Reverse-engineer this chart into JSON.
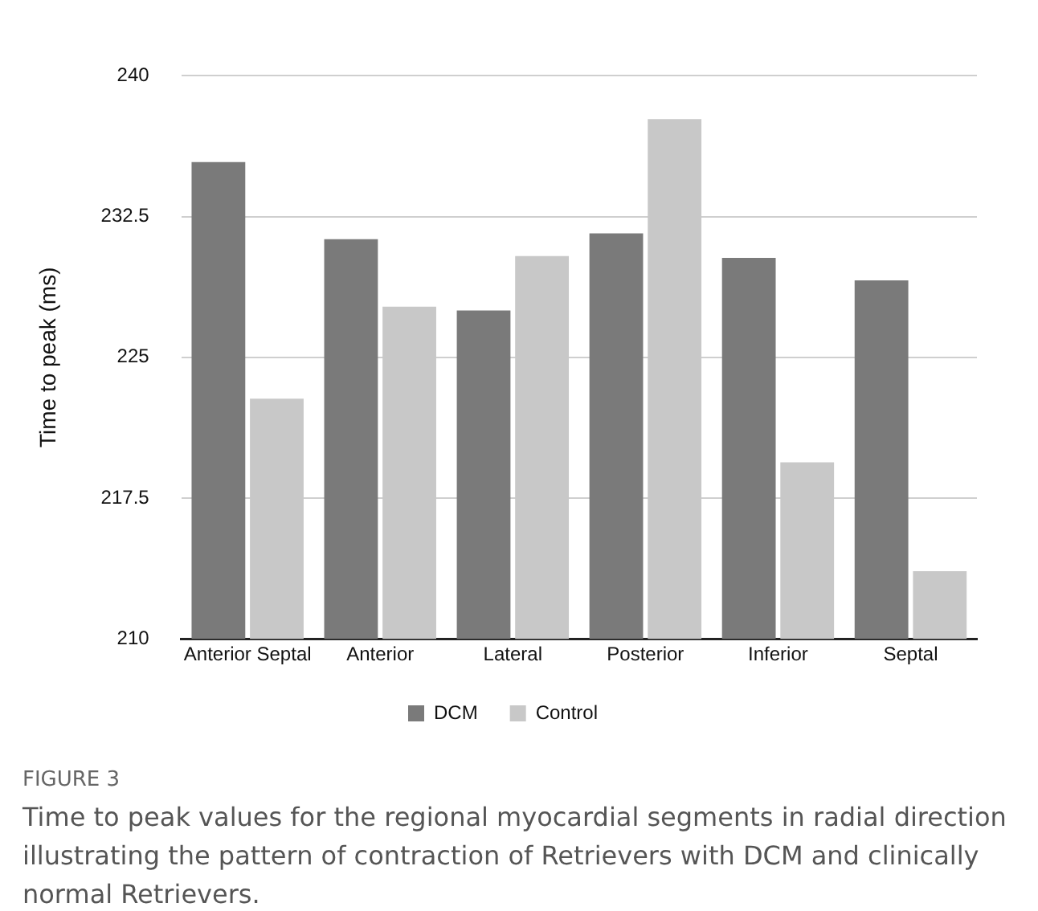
{
  "chart_data": {
    "type": "bar",
    "ylabel": "Time to peak (ms)",
    "categories": [
      "Anterior Septal",
      "Anterior",
      "Lateral",
      "Posterior",
      "Inferior",
      "Septal"
    ],
    "series": [
      {
        "name": "DCM",
        "color": "#7a7a7a",
        "values": [
          235.4,
          231.3,
          227.5,
          231.6,
          230.3,
          229.1
        ]
      },
      {
        "name": "Control",
        "color": "#c8c8c8",
        "values": [
          222.8,
          227.7,
          230.4,
          237.7,
          219.4,
          213.6
        ]
      }
    ],
    "ylim": [
      210,
      240
    ],
    "yticks": [
      210,
      217.5,
      225,
      232.5,
      240
    ],
    "grid": "y",
    "legend": "bottom",
    "annotations": [
      "FIGURE 3",
      "Time to peak values for the regional myocardial segments in radial direction illustrating the pattern of contraction of Retrievers with DCM and clinically normal Retrievers."
    ]
  }
}
